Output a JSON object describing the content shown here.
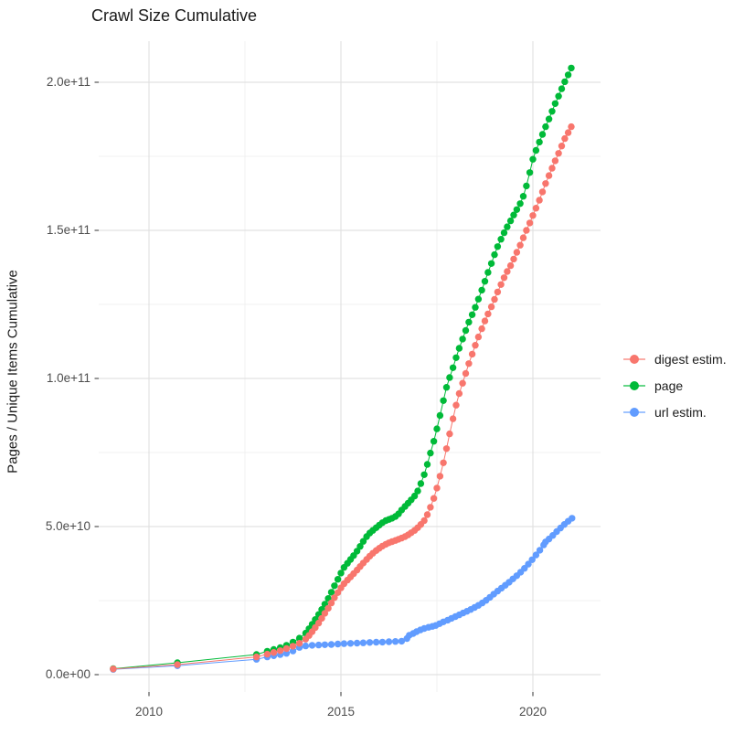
{
  "title": "Crawl Size Cumulative",
  "chart_data": {
    "type": "scatter",
    "title": "Crawl Size Cumulative",
    "xlabel": "",
    "ylabel": "Pages / Unique Items Cumulative",
    "legend_position": "right",
    "grid": true,
    "background": "#ffffff",
    "grid_major_color": "#e2e2e2",
    "grid_minor_color": "#f0f0f0",
    "tick_color": "#333333",
    "axis_text_color": "#4d4d4d",
    "xlim": [
      2008.69,
      2022.76
    ],
    "ylim_e9": [
      -6,
      214
    ],
    "x_ticks": [
      {
        "value": 2010,
        "label": "2010"
      },
      {
        "value": 2015,
        "label": "2015"
      },
      {
        "value": 2020,
        "label": "2020"
      }
    ],
    "x_minor_ticks": [
      2012.5,
      2017.5
    ],
    "y_ticks": [
      {
        "value_e9": 0,
        "label": "0.0e+00"
      },
      {
        "value_e9": 50,
        "label": "5.0e+10"
      },
      {
        "value_e9": 100,
        "label": "1.0e+11"
      },
      {
        "value_e9": 150,
        "label": "1.5e+11"
      },
      {
        "value_e9": 200,
        "label": "2.0e+11"
      }
    ],
    "y_minor_ticks_e9": [
      25,
      75,
      125,
      175
    ],
    "value_unit": "count (values below in billions, 1e9)",
    "series": [
      {
        "name": "digest estim.",
        "color": "#F8766D",
        "points": [
          [
            2009.07,
            1.9
          ],
          [
            2010.74,
            3.4
          ],
          [
            2012.8,
            6.0
          ],
          [
            2013.08,
            6.9
          ],
          [
            2013.25,
            7.5
          ],
          [
            2013.42,
            8.1
          ],
          [
            2013.58,
            8.8
          ],
          [
            2013.75,
            9.6
          ],
          [
            2013.92,
            10.6
          ],
          [
            2014.08,
            12.0
          ],
          [
            2014.17,
            13.2
          ],
          [
            2014.25,
            14.5
          ],
          [
            2014.33,
            15.9
          ],
          [
            2014.42,
            17.4
          ],
          [
            2014.5,
            19.0
          ],
          [
            2014.58,
            20.7
          ],
          [
            2014.67,
            22.4
          ],
          [
            2014.75,
            24.2
          ],
          [
            2014.83,
            26.0
          ],
          [
            2014.92,
            27.7
          ],
          [
            2015.0,
            29.3
          ],
          [
            2015.08,
            30.7
          ],
          [
            2015.17,
            31.9
          ],
          [
            2015.25,
            33.0
          ],
          [
            2015.33,
            34.1
          ],
          [
            2015.42,
            35.3
          ],
          [
            2015.5,
            36.5
          ],
          [
            2015.58,
            37.7
          ],
          [
            2015.67,
            38.9
          ],
          [
            2015.75,
            40.0
          ],
          [
            2015.83,
            41.0
          ],
          [
            2015.92,
            41.9
          ],
          [
            2016.0,
            42.7
          ],
          [
            2016.08,
            43.4
          ],
          [
            2016.17,
            44.0
          ],
          [
            2016.25,
            44.5
          ],
          [
            2016.33,
            44.9
          ],
          [
            2016.42,
            45.3
          ],
          [
            2016.5,
            45.7
          ],
          [
            2016.58,
            46.1
          ],
          [
            2016.67,
            46.6
          ],
          [
            2016.75,
            47.2
          ],
          [
            2016.83,
            47.9
          ],
          [
            2016.92,
            48.7
          ],
          [
            2017.0,
            49.6
          ],
          [
            2017.08,
            50.7
          ],
          [
            2017.17,
            52.0
          ],
          [
            2017.25,
            54.0
          ],
          [
            2017.33,
            56.5
          ],
          [
            2017.42,
            59.5
          ],
          [
            2017.5,
            63.0
          ],
          [
            2017.58,
            67.0
          ],
          [
            2017.67,
            71.5
          ],
          [
            2017.75,
            76.3
          ],
          [
            2017.83,
            81.3
          ],
          [
            2017.92,
            86.4
          ],
          [
            2018.0,
            91.0
          ],
          [
            2018.08,
            94.9
          ],
          [
            2018.17,
            98.4
          ],
          [
            2018.25,
            101.7
          ],
          [
            2018.33,
            105.0
          ],
          [
            2018.42,
            108.2
          ],
          [
            2018.5,
            111.2
          ],
          [
            2018.58,
            114.0
          ],
          [
            2018.67,
            116.8
          ],
          [
            2018.75,
            119.4
          ],
          [
            2018.83,
            121.8
          ],
          [
            2018.92,
            124.2
          ],
          [
            2019.0,
            126.7
          ],
          [
            2019.08,
            129.2
          ],
          [
            2019.17,
            131.7
          ],
          [
            2019.25,
            134.0
          ],
          [
            2019.33,
            136.1
          ],
          [
            2019.42,
            138.1
          ],
          [
            2019.5,
            140.3
          ],
          [
            2019.58,
            142.6
          ],
          [
            2019.67,
            145.0
          ],
          [
            2019.75,
            147.5
          ],
          [
            2019.83,
            150.0
          ],
          [
            2019.92,
            152.5
          ],
          [
            2020.0,
            155.0
          ],
          [
            2020.08,
            157.5
          ],
          [
            2020.17,
            160.2
          ],
          [
            2020.25,
            163.0
          ],
          [
            2020.33,
            165.8
          ],
          [
            2020.42,
            168.5
          ],
          [
            2020.5,
            171.0
          ],
          [
            2020.58,
            173.5
          ],
          [
            2020.67,
            176.0
          ],
          [
            2020.75,
            178.5
          ],
          [
            2020.83,
            181.0
          ],
          [
            2020.92,
            183.0
          ],
          [
            2021.0,
            185.0
          ]
        ]
      },
      {
        "name": "page",
        "color": "#00BA38",
        "points": [
          [
            2009.07,
            2.0
          ],
          [
            2010.74,
            4.0
          ],
          [
            2012.8,
            6.8
          ],
          [
            2013.08,
            7.9
          ],
          [
            2013.25,
            8.5
          ],
          [
            2013.42,
            9.1
          ],
          [
            2013.58,
            9.9
          ],
          [
            2013.75,
            11.0
          ],
          [
            2013.92,
            12.3
          ],
          [
            2014.08,
            14.0
          ],
          [
            2014.17,
            15.5
          ],
          [
            2014.25,
            17.0
          ],
          [
            2014.33,
            18.6
          ],
          [
            2014.42,
            20.3
          ],
          [
            2014.5,
            22.0
          ],
          [
            2014.58,
            23.8
          ],
          [
            2014.67,
            25.7
          ],
          [
            2014.75,
            27.8
          ],
          [
            2014.83,
            30.0
          ],
          [
            2014.92,
            32.2
          ],
          [
            2015.0,
            34.3
          ],
          [
            2015.08,
            36.2
          ],
          [
            2015.17,
            37.6
          ],
          [
            2015.25,
            38.9
          ],
          [
            2015.33,
            40.2
          ],
          [
            2015.42,
            41.7
          ],
          [
            2015.5,
            43.3
          ],
          [
            2015.58,
            45.0
          ],
          [
            2015.67,
            46.6
          ],
          [
            2015.75,
            47.8
          ],
          [
            2015.83,
            48.7
          ],
          [
            2015.92,
            49.6
          ],
          [
            2016.0,
            50.5
          ],
          [
            2016.08,
            51.3
          ],
          [
            2016.17,
            52.0
          ],
          [
            2016.25,
            52.4
          ],
          [
            2016.33,
            52.8
          ],
          [
            2016.42,
            53.4
          ],
          [
            2016.5,
            54.3
          ],
          [
            2016.58,
            55.6
          ],
          [
            2016.67,
            56.8
          ],
          [
            2016.75,
            57.9
          ],
          [
            2016.83,
            59.0
          ],
          [
            2016.92,
            60.3
          ],
          [
            2017.0,
            62.0
          ],
          [
            2017.08,
            64.5
          ],
          [
            2017.17,
            67.5
          ],
          [
            2017.25,
            71.0
          ],
          [
            2017.33,
            74.8
          ],
          [
            2017.42,
            78.8
          ],
          [
            2017.5,
            83.0
          ],
          [
            2017.58,
            87.5
          ],
          [
            2017.67,
            92.5
          ],
          [
            2017.75,
            97.0
          ],
          [
            2017.83,
            100.3
          ],
          [
            2017.92,
            103.6
          ],
          [
            2018.0,
            107.0
          ],
          [
            2018.08,
            110.2
          ],
          [
            2018.17,
            113.3
          ],
          [
            2018.25,
            116.2
          ],
          [
            2018.33,
            119.0
          ],
          [
            2018.42,
            121.5
          ],
          [
            2018.5,
            124.0
          ],
          [
            2018.58,
            126.8
          ],
          [
            2018.67,
            129.8
          ],
          [
            2018.75,
            132.8
          ],
          [
            2018.83,
            135.8
          ],
          [
            2018.92,
            138.8
          ],
          [
            2019.0,
            141.8
          ],
          [
            2019.08,
            144.5
          ],
          [
            2019.17,
            147.0
          ],
          [
            2019.25,
            149.2
          ],
          [
            2019.33,
            151.2
          ],
          [
            2019.42,
            153.2
          ],
          [
            2019.5,
            155.2
          ],
          [
            2019.58,
            157.0
          ],
          [
            2019.67,
            159.0
          ],
          [
            2019.75,
            161.5
          ],
          [
            2019.83,
            165.0
          ],
          [
            2019.92,
            169.5
          ],
          [
            2020.0,
            174.0
          ],
          [
            2020.08,
            177.0
          ],
          [
            2020.17,
            179.8
          ],
          [
            2020.25,
            182.4
          ],
          [
            2020.33,
            185.0
          ],
          [
            2020.42,
            187.6
          ],
          [
            2020.5,
            190.2
          ],
          [
            2020.58,
            192.8
          ],
          [
            2020.67,
            195.3
          ],
          [
            2020.75,
            197.8
          ],
          [
            2020.83,
            200.2
          ],
          [
            2020.92,
            202.5
          ],
          [
            2021.0,
            204.8
          ]
        ]
      },
      {
        "name": "url estim.",
        "color": "#619CFF",
        "points": [
          [
            2009.07,
            1.8
          ],
          [
            2010.74,
            3.0
          ],
          [
            2012.8,
            5.2
          ],
          [
            2013.08,
            6.0
          ],
          [
            2013.25,
            6.4
          ],
          [
            2013.42,
            6.8
          ],
          [
            2013.58,
            7.2
          ],
          [
            2013.75,
            8.0
          ],
          [
            2013.92,
            9.2
          ],
          [
            2014.08,
            9.7
          ],
          [
            2014.25,
            9.9
          ],
          [
            2014.42,
            10.0
          ],
          [
            2014.58,
            10.1
          ],
          [
            2014.75,
            10.2
          ],
          [
            2014.92,
            10.35
          ],
          [
            2015.08,
            10.45
          ],
          [
            2015.25,
            10.55
          ],
          [
            2015.42,
            10.65
          ],
          [
            2015.58,
            10.75
          ],
          [
            2015.75,
            10.85
          ],
          [
            2015.92,
            10.95
          ],
          [
            2016.08,
            11.0
          ],
          [
            2016.25,
            11.1
          ],
          [
            2016.42,
            11.2
          ],
          [
            2016.58,
            11.3
          ],
          [
            2016.72,
            12.2
          ],
          [
            2016.78,
            13.3
          ],
          [
            2016.88,
            13.9
          ],
          [
            2016.97,
            14.5
          ],
          [
            2017.07,
            15.1
          ],
          [
            2017.17,
            15.6
          ],
          [
            2017.28,
            16.0
          ],
          [
            2017.38,
            16.3
          ],
          [
            2017.47,
            16.6
          ],
          [
            2017.57,
            17.2
          ],
          [
            2017.67,
            17.8
          ],
          [
            2017.78,
            18.4
          ],
          [
            2017.88,
            19.0
          ],
          [
            2017.98,
            19.6
          ],
          [
            2018.08,
            20.2
          ],
          [
            2018.18,
            20.8
          ],
          [
            2018.28,
            21.4
          ],
          [
            2018.38,
            22.0
          ],
          [
            2018.48,
            22.7
          ],
          [
            2018.58,
            23.4
          ],
          [
            2018.68,
            24.2
          ],
          [
            2018.78,
            25.1
          ],
          [
            2018.88,
            26.1
          ],
          [
            2018.98,
            27.2
          ],
          [
            2019.08,
            28.2
          ],
          [
            2019.18,
            29.2
          ],
          [
            2019.28,
            30.2
          ],
          [
            2019.38,
            31.2
          ],
          [
            2019.48,
            32.3
          ],
          [
            2019.58,
            33.4
          ],
          [
            2019.68,
            34.6
          ],
          [
            2019.78,
            35.9
          ],
          [
            2019.88,
            37.3
          ],
          [
            2019.98,
            38.8
          ],
          [
            2020.08,
            40.4
          ],
          [
            2020.18,
            42.0
          ],
          [
            2020.28,
            43.8
          ],
          [
            2020.33,
            44.8
          ],
          [
            2020.42,
            45.8
          ],
          [
            2020.52,
            47.0
          ],
          [
            2020.62,
            48.3
          ],
          [
            2020.72,
            49.5
          ],
          [
            2020.82,
            50.7
          ],
          [
            2020.92,
            51.8
          ],
          [
            2021.02,
            52.8
          ]
        ]
      }
    ]
  }
}
